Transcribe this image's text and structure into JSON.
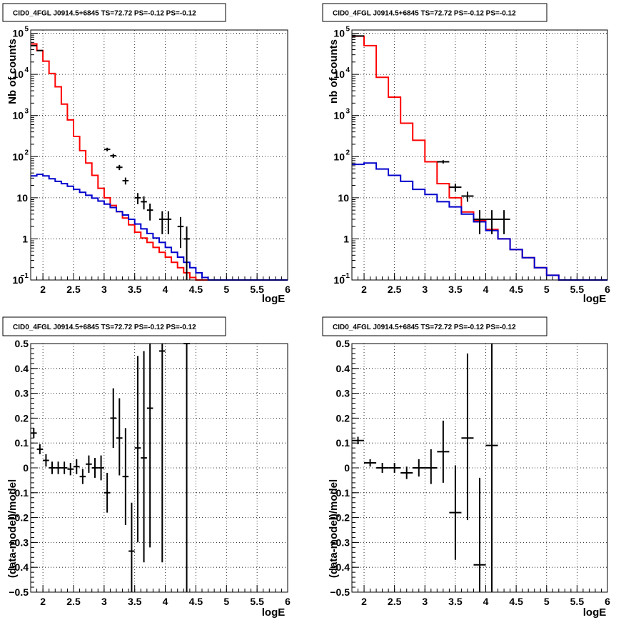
{
  "colors": {
    "total_model": "#ff0000",
    "background_model": "#0000cc",
    "data": "#000000"
  },
  "chart_data": [
    {
      "id": "p1",
      "type": "line",
      "title": "CID0_4FGL J0914.5+6845 TS=72.72 PS=-0.12 PS=-0.12",
      "xlabel": "logE",
      "ylabel": "Nb of counts",
      "log_y": true,
      "xlim": [
        1.8,
        6.0
      ],
      "ylim": [
        0.1,
        120000
      ],
      "x_ticks": [
        "2",
        "2.5",
        "3",
        "3.5",
        "4",
        "4.5",
        "5",
        "5.5",
        "6"
      ],
      "y_ticks": [
        {
          "v": 0.1,
          "m": "10",
          "e": "−1"
        },
        {
          "v": 1,
          "m": "1",
          "e": ""
        },
        {
          "v": 10,
          "m": "10",
          "e": ""
        },
        {
          "v": 100,
          "m": "10",
          "e": "2"
        },
        {
          "v": 1000,
          "m": "10",
          "e": "3"
        },
        {
          "v": 10000,
          "m": "10",
          "e": "4"
        },
        {
          "v": 100000,
          "m": "10",
          "e": "5"
        }
      ],
      "grid": true,
      "series": [
        {
          "kind": "step",
          "color_key": "total_model",
          "bin_width": 0.1,
          "x_start": 1.8,
          "values": [
            55000,
            38000,
            21000,
            10500,
            5000,
            1900,
            780,
            310,
            140,
            70,
            35,
            17,
            10,
            6.5,
            4.6,
            3.2,
            2.2,
            1.45,
            1.05,
            0.82,
            0.62,
            0.47,
            0.36,
            0.27,
            0.2,
            0.15,
            0.115,
            0.1,
            0.1,
            0.1,
            0.1,
            0.1,
            0.1,
            0.1,
            0.1,
            0.1,
            0.1,
            0.1,
            0.1,
            0.1,
            0.1,
            0.1
          ]
        },
        {
          "kind": "step",
          "color_key": "background_model",
          "bin_width": 0.1,
          "x_start": 1.8,
          "values": [
            34,
            37,
            34,
            29,
            25,
            22,
            19,
            16,
            13.5,
            11.5,
            9.8,
            8.3,
            7,
            5.8,
            4.6,
            3.8,
            3.0,
            2.3,
            1.75,
            1.35,
            1.05,
            0.82,
            0.62,
            0.47,
            0.36,
            0.27,
            0.2,
            0.15,
            0.115,
            0.1,
            0.1,
            0.1,
            0.1,
            0.1,
            0.1,
            0.1,
            0.1,
            0.1,
            0.1,
            0.1,
            0.1,
            0.1
          ]
        },
        {
          "kind": "errorbars",
          "color_key": "data",
          "points": [
            {
              "x": 1.85,
              "y": 50000,
              "xe": 0.05,
              "lo": 49000,
              "hi": 51000
            },
            {
              "x": 1.95,
              "y": 38000,
              "xe": 0.05,
              "lo": 37000,
              "hi": 39000
            },
            {
              "x": 3.05,
              "y": 150,
              "xe": 0.05,
              "lo": 135,
              "hi": 165
            },
            {
              "x": 3.15,
              "y": 105,
              "xe": 0.05,
              "lo": 93,
              "hi": 117
            },
            {
              "x": 3.25,
              "y": 55,
              "xe": 0.05,
              "lo": 47,
              "hi": 63
            },
            {
              "x": 3.35,
              "y": 26,
              "xe": 0.05,
              "lo": 21,
              "hi": 31
            },
            {
              "x": 3.55,
              "y": 10,
              "xe": 0.05,
              "lo": 7,
              "hi": 13
            },
            {
              "x": 3.65,
              "y": 8,
              "xe": 0.05,
              "lo": 5.2,
              "hi": 10.8
            },
            {
              "x": 3.75,
              "y": 5,
              "xe": 0.05,
              "lo": 2.8,
              "hi": 7.2
            },
            {
              "x": 3.95,
              "y": 3,
              "xe": 0.05,
              "lo": 1.3,
              "hi": 4.7
            },
            {
              "x": 4.05,
              "y": 3,
              "xe": 0.05,
              "lo": 1.3,
              "hi": 4.7
            },
            {
              "x": 4.25,
              "y": 2,
              "xe": 0.05,
              "lo": 0.6,
              "hi": 3.4
            },
            {
              "x": 4.35,
              "y": 1,
              "xe": 0.05,
              "lo": 0.1,
              "hi": 2
            }
          ]
        }
      ]
    },
    {
      "id": "p2",
      "type": "line",
      "title": "CID0_4FGL J0914.5+6845 TS=72.72 PS=-0.12 PS=-0.12",
      "xlabel": "logE",
      "ylabel": "nb of counts",
      "log_y": true,
      "xlim": [
        1.8,
        6.0
      ],
      "ylim": [
        0.1,
        120000
      ],
      "x_ticks": [
        "2",
        "2.5",
        "3",
        "3.5",
        "4",
        "4.5",
        "5",
        "5.5",
        "6"
      ],
      "y_ticks": [
        {
          "v": 0.1,
          "m": "10",
          "e": "−1"
        },
        {
          "v": 1,
          "m": "1",
          "e": ""
        },
        {
          "v": 10,
          "m": "10",
          "e": ""
        },
        {
          "v": 100,
          "m": "10",
          "e": "2"
        },
        {
          "v": 1000,
          "m": "10",
          "e": "3"
        },
        {
          "v": 10000,
          "m": "10",
          "e": "4"
        },
        {
          "v": 100000,
          "m": "10",
          "e": "5"
        }
      ],
      "grid": true,
      "series": [
        {
          "kind": "step",
          "color_key": "total_model",
          "bin_width": 0.2,
          "x_start": 1.8,
          "values": [
            85000,
            50000,
            8500,
            2800,
            650,
            250,
            75,
            22,
            10,
            4.5,
            2.8,
            1.7,
            1.0,
            0.55,
            0.35,
            0.2,
            0.13,
            0.1,
            0.1,
            0.1,
            0.1
          ]
        },
        {
          "kind": "step",
          "color_key": "background_model",
          "bin_width": 0.2,
          "x_start": 1.8,
          "values": [
            65,
            70,
            50,
            35,
            25,
            16,
            12,
            8,
            6,
            4,
            2.6,
            1.6,
            1.0,
            0.55,
            0.35,
            0.2,
            0.13,
            0.1,
            0.1,
            0.1,
            0.1
          ]
        },
        {
          "kind": "errorbars",
          "color_key": "data",
          "points": [
            {
              "x": 1.9,
              "y": 86000,
              "xe": 0.1,
              "lo": 85000,
              "hi": 87000
            },
            {
              "x": 3.3,
              "y": 75,
              "xe": 0.1,
              "lo": 68,
              "hi": 82
            },
            {
              "x": 3.5,
              "y": 18,
              "xe": 0.1,
              "lo": 14,
              "hi": 22
            },
            {
              "x": 3.7,
              "y": 11,
              "xe": 0.1,
              "lo": 8,
              "hi": 14
            },
            {
              "x": 3.9,
              "y": 3,
              "xe": 0.1,
              "lo": 1.3,
              "hi": 5
            },
            {
              "x": 4.1,
              "y": 3,
              "xe": 0.1,
              "lo": 1.3,
              "hi": 5
            },
            {
              "x": 4.3,
              "y": 3,
              "xe": 0.1,
              "lo": 1.3,
              "hi": 5
            }
          ]
        }
      ]
    },
    {
      "id": "p3",
      "type": "scatter",
      "title": "CID0_4FGL J0914.5+6845 TS=72.72 PS=-0.12 PS=-0.12",
      "xlabel": "logE",
      "ylabel": "(data-model)/model",
      "log_y": false,
      "xlim": [
        1.8,
        6.0
      ],
      "ylim": [
        -0.5,
        0.5
      ],
      "x_ticks": [
        "2",
        "2.5",
        "3",
        "3.5",
        "4",
        "4.5",
        "5",
        "5.5",
        "6"
      ],
      "y_ticks_linear": [
        "−0.5",
        "−0.4",
        "−0.3",
        "−0.2",
        "−0.1",
        "0",
        "0.1",
        "0.2",
        "0.3",
        "0.4",
        "0.5"
      ],
      "grid": true,
      "series": [
        {
          "kind": "errorbars",
          "color_key": "data",
          "points": [
            {
              "x": 1.85,
              "y": 0.14,
              "xe": 0.05,
              "lo": 0.12,
              "hi": 0.16
            },
            {
              "x": 1.95,
              "y": 0.075,
              "xe": 0.05,
              "lo": 0.055,
              "hi": 0.095
            },
            {
              "x": 2.05,
              "y": 0.03,
              "xe": 0.05,
              "lo": 0.005,
              "hi": 0.055
            },
            {
              "x": 2.15,
              "y": 0.0,
              "xe": 0.05,
              "lo": -0.025,
              "hi": 0.025
            },
            {
              "x": 2.25,
              "y": 0.0,
              "xe": 0.05,
              "lo": -0.025,
              "hi": 0.025
            },
            {
              "x": 2.35,
              "y": 0.0,
              "xe": 0.05,
              "lo": -0.025,
              "hi": 0.025
            },
            {
              "x": 2.45,
              "y": -0.005,
              "xe": 0.05,
              "lo": -0.03,
              "hi": 0.02
            },
            {
              "x": 2.55,
              "y": 0.005,
              "xe": 0.05,
              "lo": -0.025,
              "hi": 0.035
            },
            {
              "x": 2.65,
              "y": -0.035,
              "xe": 0.05,
              "lo": -0.065,
              "hi": -0.005
            },
            {
              "x": 2.75,
              "y": 0.015,
              "xe": 0.05,
              "lo": -0.02,
              "hi": 0.05
            },
            {
              "x": 2.85,
              "y": 0.0,
              "xe": 0.05,
              "lo": -0.04,
              "hi": 0.04
            },
            {
              "x": 2.95,
              "y": 0.0,
              "xe": 0.05,
              "lo": -0.05,
              "hi": 0.05
            },
            {
              "x": 3.05,
              "y": -0.1,
              "xe": 0.05,
              "lo": -0.18,
              "hi": -0.02
            },
            {
              "x": 3.15,
              "y": 0.2,
              "xe": 0.05,
              "lo": 0.08,
              "hi": 0.32
            },
            {
              "x": 3.25,
              "y": 0.12,
              "xe": 0.05,
              "lo": -0.03,
              "hi": 0.28
            },
            {
              "x": 3.35,
              "y": -0.035,
              "xe": 0.05,
              "lo": -0.23,
              "hi": 0.16
            },
            {
              "x": 3.45,
              "y": -0.335,
              "xe": 0.05,
              "lo": -0.5,
              "hi": -0.14
            },
            {
              "x": 3.55,
              "y": 0.08,
              "xe": 0.05,
              "lo": -0.3,
              "hi": 0.45
            },
            {
              "x": 3.65,
              "y": 0.04,
              "xe": 0.05,
              "lo": -0.38,
              "hi": 0.47
            },
            {
              "x": 3.75,
              "y": 0.24,
              "xe": 0.05,
              "lo": -0.32,
              "hi": 0.5
            },
            {
              "x": 3.95,
              "y": 0.47,
              "xe": 0.05,
              "lo": -0.38,
              "hi": 0.5
            },
            {
              "x": 4.35,
              "y": 0.5,
              "xe": 0.05,
              "lo": -0.5,
              "hi": 0.5
            }
          ]
        }
      ]
    },
    {
      "id": "p4",
      "type": "scatter",
      "title": "CID0_4FGL J0914.5+6845 TS=72.72 PS=-0.12 PS=-0.12",
      "xlabel": "logE",
      "ylabel": "(data-model)/model",
      "log_y": false,
      "xlim": [
        1.8,
        6.0
      ],
      "ylim": [
        -0.5,
        0.5
      ],
      "x_ticks": [
        "2",
        "2.5",
        "3",
        "3.5",
        "4",
        "4.5",
        "5",
        "5.5",
        "6"
      ],
      "y_ticks_linear": [
        "−0.5",
        "−0.4",
        "−0.3",
        "−0.2",
        "−0.1",
        "0",
        "0.1",
        "0.2",
        "0.3",
        "0.4",
        "0.5"
      ],
      "grid": true,
      "series": [
        {
          "kind": "errorbars",
          "color_key": "data",
          "points": [
            {
              "x": 1.9,
              "y": 0.11,
              "xe": 0.1,
              "lo": 0.095,
              "hi": 0.125
            },
            {
              "x": 2.1,
              "y": 0.02,
              "xe": 0.1,
              "lo": 0.005,
              "hi": 0.035
            },
            {
              "x": 2.3,
              "y": 0.0,
              "xe": 0.1,
              "lo": -0.02,
              "hi": 0.02
            },
            {
              "x": 2.5,
              "y": 0.0,
              "xe": 0.1,
              "lo": -0.02,
              "hi": 0.02
            },
            {
              "x": 2.7,
              "y": -0.02,
              "xe": 0.1,
              "lo": -0.045,
              "hi": 0.005
            },
            {
              "x": 2.9,
              "y": 0.0,
              "xe": 0.1,
              "lo": -0.035,
              "hi": 0.035
            },
            {
              "x": 3.1,
              "y": 0.0,
              "xe": 0.1,
              "lo": -0.065,
              "hi": 0.075
            },
            {
              "x": 3.3,
              "y": 0.065,
              "xe": 0.1,
              "lo": -0.06,
              "hi": 0.19
            },
            {
              "x": 3.5,
              "y": -0.18,
              "xe": 0.1,
              "lo": -0.37,
              "hi": 0.01
            },
            {
              "x": 3.7,
              "y": 0.12,
              "xe": 0.1,
              "lo": -0.21,
              "hi": 0.46
            },
            {
              "x": 3.9,
              "y": -0.39,
              "xe": 0.1,
              "lo": -0.5,
              "hi": -0.04
            },
            {
              "x": 4.1,
              "y": 0.09,
              "xe": 0.1,
              "lo": -0.5,
              "hi": 0.5
            }
          ]
        }
      ]
    }
  ]
}
